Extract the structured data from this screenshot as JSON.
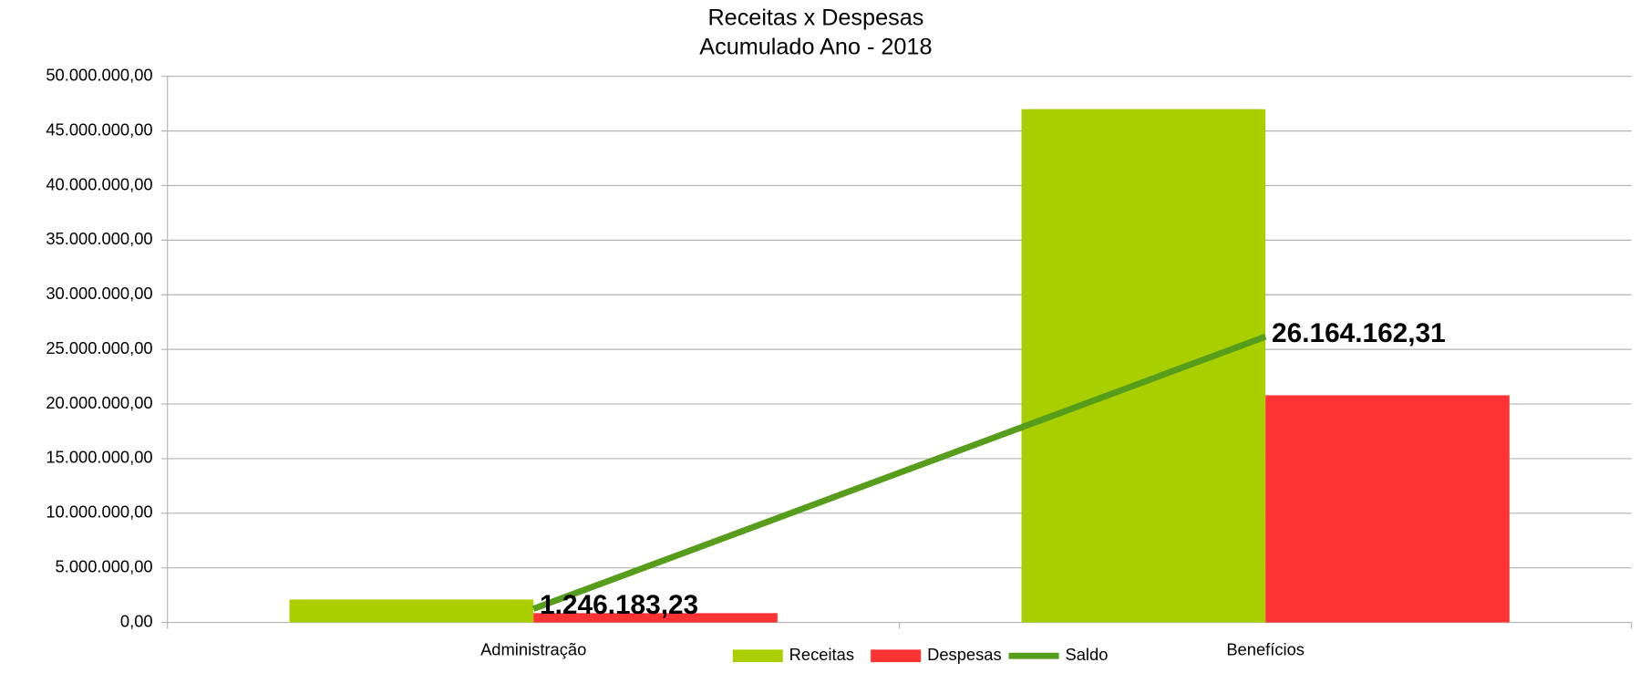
{
  "chart_data": {
    "type": "bar",
    "title": "Receitas x Despesas",
    "subtitle": "Acumulado Ano - 2018",
    "categories": [
      "Administração",
      "Benefícios"
    ],
    "series": [
      {
        "name": "Receitas",
        "color": "#aacf00",
        "values": [
          2100000,
          47000000
        ]
      },
      {
        "name": "Despesas",
        "color": "#ff3333",
        "values": [
          850000,
          20800000
        ]
      },
      {
        "name": "Saldo",
        "color": "#579d1c",
        "type": "line",
        "values": [
          1246183.23,
          26164162.31
        ],
        "value_labels": [
          "1.246.183,23",
          "26.164.162,31"
        ]
      }
    ],
    "ylim": [
      0,
      50000000
    ],
    "yticks": [
      {
        "value": 0,
        "label": "0,00"
      },
      {
        "value": 5000000,
        "label": "5.000.000,00"
      },
      {
        "value": 10000000,
        "label": "10.000.000,00"
      },
      {
        "value": 15000000,
        "label": "15.000.000,00"
      },
      {
        "value": 20000000,
        "label": "20.000.000,00"
      },
      {
        "value": 25000000,
        "label": "25.000.000,00"
      },
      {
        "value": 30000000,
        "label": "30.000.000,00"
      },
      {
        "value": 35000000,
        "label": "35.000.000,00"
      },
      {
        "value": 40000000,
        "label": "40.000.000,00"
      },
      {
        "value": 45000000,
        "label": "45.000.000,00"
      },
      {
        "value": 50000000,
        "label": "50.000.000,00"
      }
    ],
    "grid": true,
    "legend": "bottom"
  }
}
